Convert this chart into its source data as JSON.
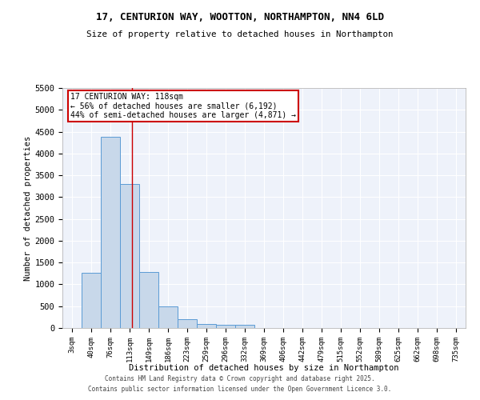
{
  "title1": "17, CENTURION WAY, WOOTTON, NORTHAMPTON, NN4 6LD",
  "title2": "Size of property relative to detached houses in Northampton",
  "xlabel": "Distribution of detached houses by size in Northampton",
  "ylabel": "Number of detached properties",
  "bar_color": "#c8d8ea",
  "bar_edge_color": "#5b9bd5",
  "background_color": "#eef2fa",
  "grid_color": "#ffffff",
  "categories": [
    "3sqm",
    "40sqm",
    "76sqm",
    "113sqm",
    "149sqm",
    "186sqm",
    "223sqm",
    "259sqm",
    "296sqm",
    "332sqm",
    "369sqm",
    "406sqm",
    "442sqm",
    "479sqm",
    "515sqm",
    "552sqm",
    "589sqm",
    "625sqm",
    "662sqm",
    "698sqm",
    "735sqm"
  ],
  "values": [
    0,
    1270,
    4380,
    3300,
    1290,
    490,
    200,
    85,
    65,
    65,
    0,
    0,
    0,
    0,
    0,
    0,
    0,
    0,
    0,
    0,
    0
  ],
  "ylim": [
    0,
    5500
  ],
  "yticks": [
    0,
    500,
    1000,
    1500,
    2000,
    2500,
    3000,
    3500,
    4000,
    4500,
    5000,
    5500
  ],
  "annotation_text": "17 CENTURION WAY: 118sqm\n← 56% of detached houses are smaller (6,192)\n44% of semi-detached houses are larger (4,871) →",
  "annotation_color": "#cc0000",
  "footer1": "Contains HM Land Registry data © Crown copyright and database right 2025.",
  "footer2": "Contains public sector information licensed under the Open Government Licence 3.0."
}
